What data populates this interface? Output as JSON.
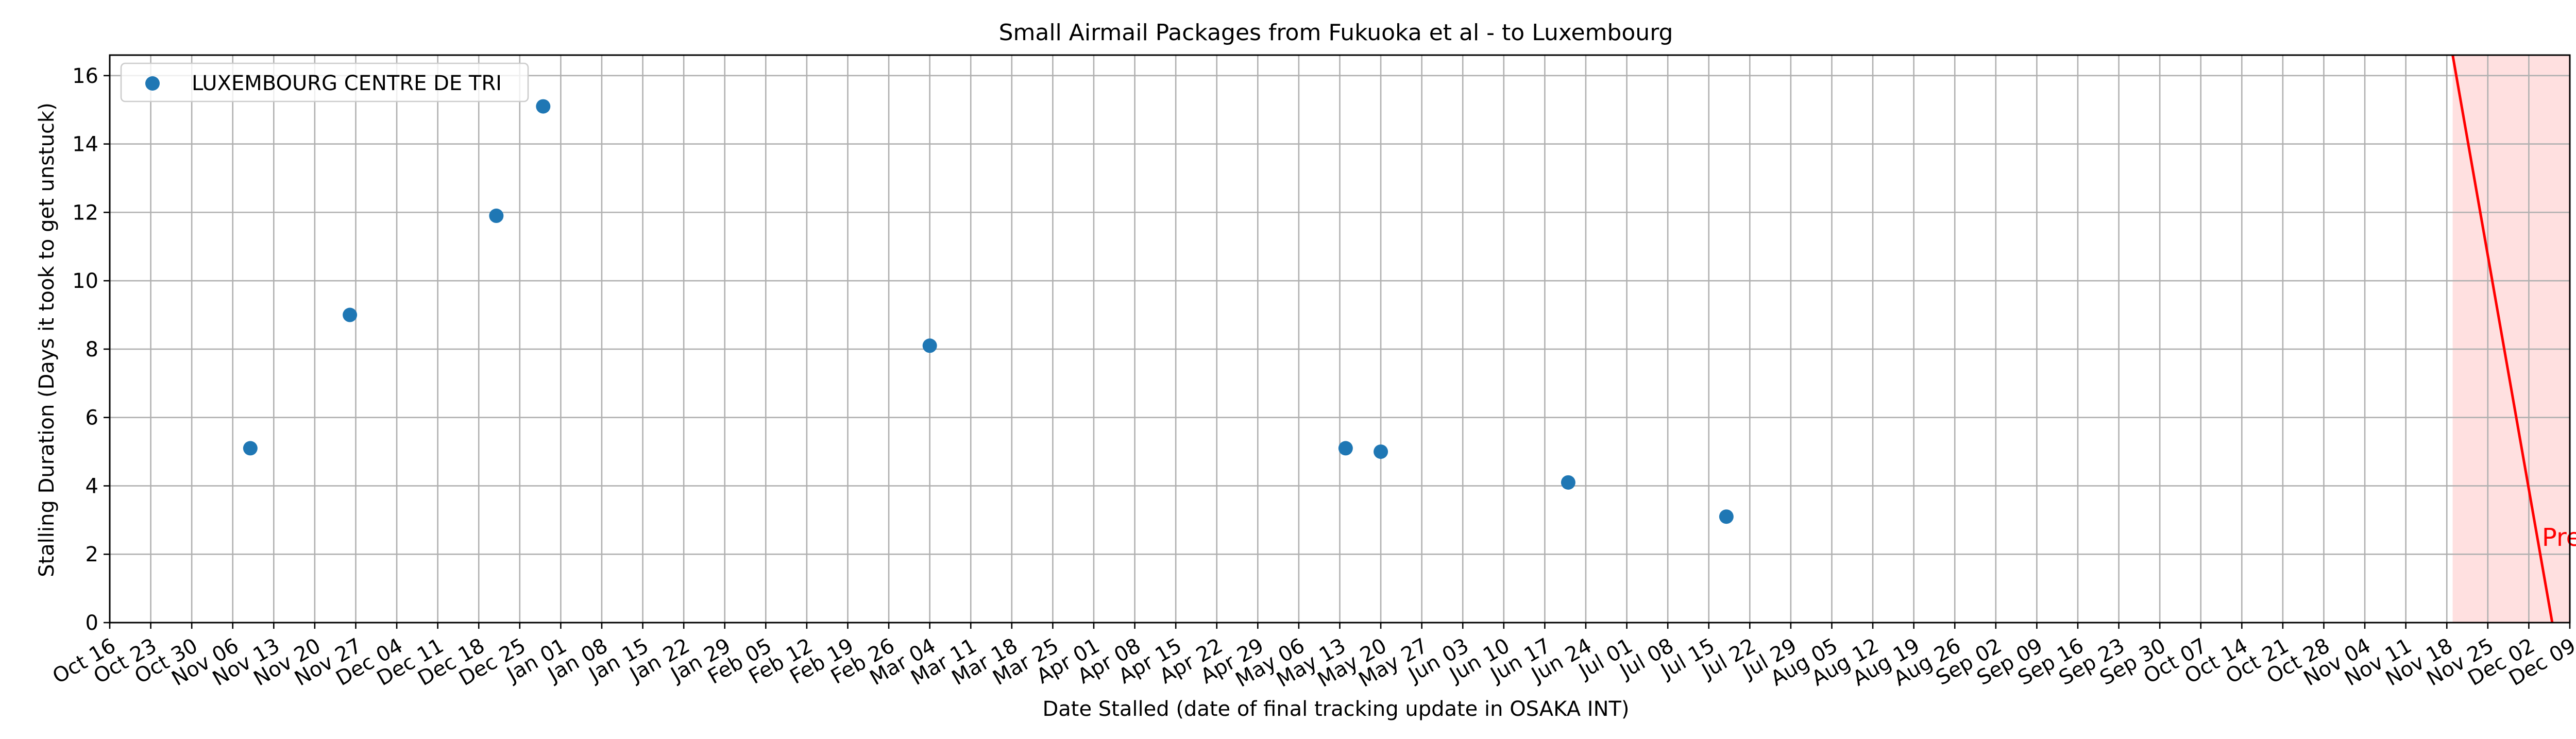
{
  "chart_data": {
    "type": "scatter",
    "title": "Small Airmail Packages from Fukuoka et al - to Luxembourg",
    "xlabel": "Date Stalled (date of final tracking update in OSAKA INT)",
    "ylabel": "Stalling Duration (Days it took to get unstuck)",
    "x_axis_type": "date",
    "xlim": [
      "2023-10-16",
      "2024-12-09"
    ],
    "ylim": [
      0,
      16.6
    ],
    "x_ticks": [
      {
        "date": "2023-10-16",
        "label": "Oct 16"
      },
      {
        "date": "2023-10-23",
        "label": "Oct 23"
      },
      {
        "date": "2023-10-30",
        "label": "Oct 30"
      },
      {
        "date": "2023-11-06",
        "label": "Nov 06"
      },
      {
        "date": "2023-11-13",
        "label": "Nov 13"
      },
      {
        "date": "2023-11-20",
        "label": "Nov 20"
      },
      {
        "date": "2023-11-27",
        "label": "Nov 27"
      },
      {
        "date": "2023-12-04",
        "label": "Dec 04"
      },
      {
        "date": "2023-12-11",
        "label": "Dec 11"
      },
      {
        "date": "2023-12-18",
        "label": "Dec 18"
      },
      {
        "date": "2023-12-25",
        "label": "Dec 25"
      },
      {
        "date": "2024-01-01",
        "label": "Jan 01"
      },
      {
        "date": "2024-01-08",
        "label": "Jan 08"
      },
      {
        "date": "2024-01-15",
        "label": "Jan 15"
      },
      {
        "date": "2024-01-22",
        "label": "Jan 22"
      },
      {
        "date": "2024-01-29",
        "label": "Jan 29"
      },
      {
        "date": "2024-02-05",
        "label": "Feb 05"
      },
      {
        "date": "2024-02-12",
        "label": "Feb 12"
      },
      {
        "date": "2024-02-19",
        "label": "Feb 19"
      },
      {
        "date": "2024-02-26",
        "label": "Feb 26"
      },
      {
        "date": "2024-03-04",
        "label": "Mar 04"
      },
      {
        "date": "2024-03-11",
        "label": "Mar 11"
      },
      {
        "date": "2024-03-18",
        "label": "Mar 18"
      },
      {
        "date": "2024-03-25",
        "label": "Mar 25"
      },
      {
        "date": "2024-04-01",
        "label": "Apr 01"
      },
      {
        "date": "2024-04-08",
        "label": "Apr 08"
      },
      {
        "date": "2024-04-15",
        "label": "Apr 15"
      },
      {
        "date": "2024-04-22",
        "label": "Apr 22"
      },
      {
        "date": "2024-04-29",
        "label": "Apr 29"
      },
      {
        "date": "2024-05-06",
        "label": "May 06"
      },
      {
        "date": "2024-05-13",
        "label": "May 13"
      },
      {
        "date": "2024-05-20",
        "label": "May 20"
      },
      {
        "date": "2024-05-27",
        "label": "May 27"
      },
      {
        "date": "2024-06-03",
        "label": "Jun 03"
      },
      {
        "date": "2024-06-10",
        "label": "Jun 10"
      },
      {
        "date": "2024-06-17",
        "label": "Jun 17"
      },
      {
        "date": "2024-06-24",
        "label": "Jun 24"
      },
      {
        "date": "2024-07-01",
        "label": "Jul 01"
      },
      {
        "date": "2024-07-08",
        "label": "Jul 08"
      },
      {
        "date": "2024-07-15",
        "label": "Jul 15"
      },
      {
        "date": "2024-07-22",
        "label": "Jul 22"
      },
      {
        "date": "2024-07-29",
        "label": "Jul 29"
      },
      {
        "date": "2024-08-05",
        "label": "Aug 05"
      },
      {
        "date": "2024-08-12",
        "label": "Aug 12"
      },
      {
        "date": "2024-08-19",
        "label": "Aug 19"
      },
      {
        "date": "2024-08-26",
        "label": "Aug 26"
      },
      {
        "date": "2024-09-02",
        "label": "Sep 02"
      },
      {
        "date": "2024-09-09",
        "label": "Sep 09"
      },
      {
        "date": "2024-09-16",
        "label": "Sep 16"
      },
      {
        "date": "2024-09-23",
        "label": "Sep 23"
      },
      {
        "date": "2024-09-30",
        "label": "Sep 30"
      },
      {
        "date": "2024-10-07",
        "label": "Oct 07"
      },
      {
        "date": "2024-10-14",
        "label": "Oct 14"
      },
      {
        "date": "2024-10-21",
        "label": "Oct 21"
      },
      {
        "date": "2024-10-28",
        "label": "Oct 28"
      },
      {
        "date": "2024-11-04",
        "label": "Nov 04"
      },
      {
        "date": "2024-11-11",
        "label": "Nov 11"
      },
      {
        "date": "2024-11-18",
        "label": "Nov 18"
      },
      {
        "date": "2024-11-25",
        "label": "Nov 25"
      },
      {
        "date": "2024-12-02",
        "label": "Dec 02"
      },
      {
        "date": "2024-12-09",
        "label": "Dec 09"
      }
    ],
    "y_ticks": [
      0,
      2,
      4,
      6,
      8,
      10,
      12,
      14,
      16
    ],
    "grid": true,
    "legend": "upper-left",
    "series": [
      {
        "name": "LUXEMBOURG CENTRE DE TRI",
        "color": "#1f77b4",
        "points": [
          {
            "x": "2023-11-09",
            "y": 5.1
          },
          {
            "x": "2023-11-26",
            "y": 9.0
          },
          {
            "x": "2023-12-21",
            "y": 11.9
          },
          {
            "x": "2023-12-29",
            "y": 15.1
          },
          {
            "x": "2024-03-04",
            "y": 8.1
          },
          {
            "x": "2024-05-14",
            "y": 5.1
          },
          {
            "x": "2024-05-20",
            "y": 5.0
          },
          {
            "x": "2024-06-21",
            "y": 4.1
          },
          {
            "x": "2024-07-18",
            "y": 3.1
          }
        ]
      }
    ],
    "present_marker": {
      "label": "Present",
      "color": "#ff0000",
      "fill": "#ffe0e0",
      "line_from": {
        "x": "2024-11-19",
        "y": 16.6
      },
      "line_to": {
        "x": "2024-12-06",
        "y": 0
      },
      "shade_from": "2024-11-19",
      "shade_to": "2024-12-09",
      "label_y": 2.5
    }
  }
}
